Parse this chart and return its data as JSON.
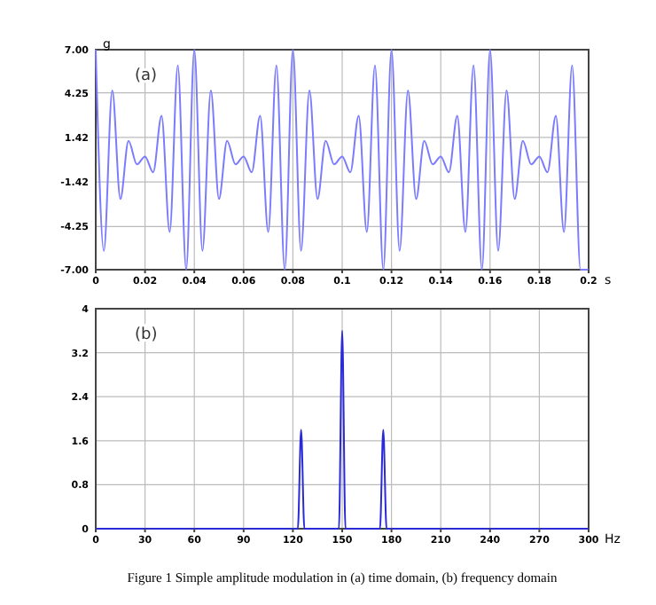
{
  "chart_data": [
    {
      "type": "line",
      "ylabel": "g",
      "xlabel": "s",
      "annotations": [
        "(a)"
      ],
      "grid": true,
      "marker": "none",
      "line_style": "solid",
      "xlim": [
        0,
        0.2
      ],
      "xticks": [
        0,
        0.02,
        0.04,
        0.06,
        0.08,
        0.1,
        0.12,
        0.14,
        0.16,
        0.18,
        0.2
      ],
      "ylim": [
        -7,
        7
      ],
      "yticks": [
        {
          "value": 7,
          "label": "7.00"
        },
        {
          "value": 4.25,
          "label": "4.25"
        },
        {
          "value": 1.42,
          "label": "1.42"
        },
        {
          "value": -1.42,
          "label": "-1.42"
        },
        {
          "value": -4.25,
          "label": "-4.25"
        },
        {
          "value": -7,
          "label": "-7.00"
        }
      ],
      "x": [
        0,
        0.0033,
        0.0067,
        0.01,
        0.0133,
        0.0167,
        0.02,
        0.0233,
        0.0267,
        0.03,
        0.0333,
        0.0367,
        0.04,
        0.0433,
        0.0467,
        0.05,
        0.0533,
        0.0567,
        0.06,
        0.0633,
        0.0667,
        0.07,
        0.0733,
        0.0767,
        0.08,
        0.0833,
        0.0867,
        0.09,
        0.0933,
        0.0967,
        0.1,
        0.1033,
        0.1067,
        0.11,
        0.1133,
        0.1167,
        0.12,
        0.1233,
        0.1267,
        0.13,
        0.1333,
        0.1367,
        0.14,
        0.1433,
        0.1467,
        0.15,
        0.1533,
        0.1567,
        0.16,
        0.1633,
        0.1667,
        0.17,
        0.1733,
        0.1767,
        0.18,
        0.1833,
        0.1867,
        0.19,
        0.1933,
        0.1967,
        0.2
      ],
      "series": [
        {
          "color": "#7b7bff",
          "values": [
            7,
            -5.8,
            4.4,
            -2.5,
            1.2,
            -0.3,
            0.2,
            -0.8,
            2.8,
            -4.6,
            6,
            -7,
            7,
            -5.8,
            4.4,
            -2.5,
            1.2,
            -0.3,
            0.2,
            -0.8,
            2.8,
            -4.6,
            6,
            -7,
            7,
            -5.8,
            4.4,
            -2.5,
            1.2,
            -0.3,
            0.2,
            -0.8,
            2.8,
            -4.6,
            6,
            -7,
            7,
            -5.8,
            4.4,
            -2.5,
            1.2,
            -0.3,
            0.2,
            -0.8,
            2.8,
            -4.6,
            6,
            -7,
            7,
            -5.8,
            4.4,
            -2.5,
            1.2,
            -0.3,
            0.2,
            -0.8,
            2.8,
            -4.6,
            6,
            -7,
            -7
          ]
        }
      ]
    },
    {
      "type": "line",
      "xlabel": "Hz",
      "annotations": [
        "(b)",
        "Figure 1 Simple amplitude modulation in (a) time domain, (b) frequency domain"
      ],
      "grid": true,
      "marker": "none",
      "line_style": "solid",
      "xlim": [
        0,
        300
      ],
      "xticks": [
        0,
        30,
        60,
        90,
        120,
        150,
        180,
        210,
        240,
        270,
        300
      ],
      "ylim": [
        0,
        4
      ],
      "yticks": [
        0,
        0.8,
        1.6,
        2.4,
        3.2,
        4
      ],
      "x": [
        0,
        123,
        125,
        127,
        148,
        150,
        152,
        173,
        175,
        177,
        300
      ],
      "series": [
        {
          "color": "#2a2ad6",
          "values": [
            0,
            0,
            1.8,
            0,
            0,
            3.6,
            0,
            0,
            1.8,
            0,
            0
          ]
        }
      ]
    }
  ]
}
